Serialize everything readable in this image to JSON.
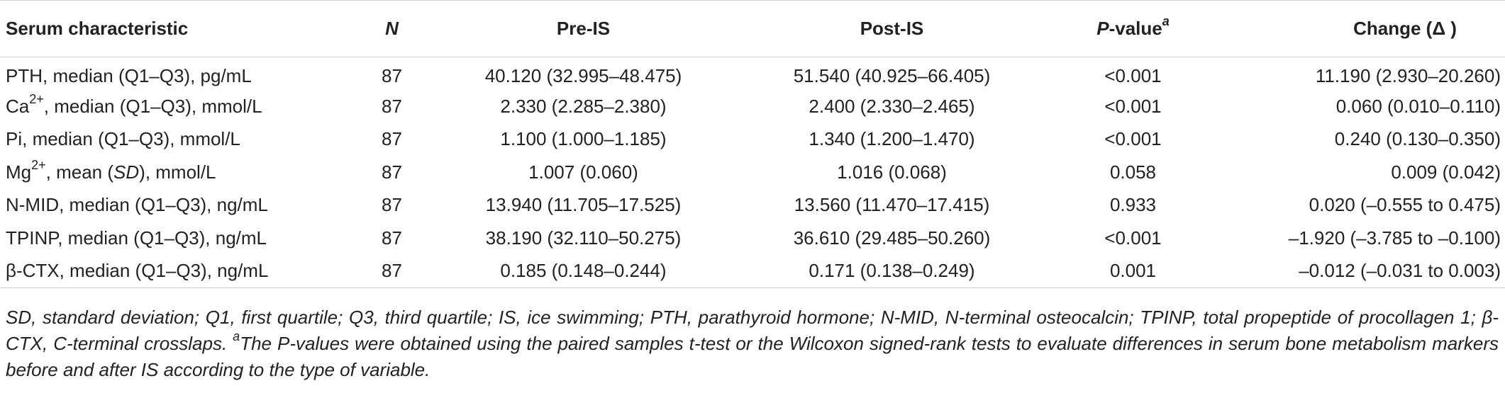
{
  "table": {
    "headers": {
      "characteristic": "Serum characteristic",
      "n": "N",
      "pre": "Pre-IS",
      "post": "Post-IS",
      "p_main": "P",
      "p_rest": "-value",
      "p_sup": "a",
      "change": "Change (Δ )"
    },
    "rows": [
      {
        "pre_label": "PTH, median (Q1–Q3), pg/mL",
        "sup": "",
        "post_label": "",
        "n": "87",
        "pre": "40.120 (32.995–48.475)",
        "post": "51.540 (40.925–66.405)",
        "p": "<0.001",
        "change": "11.190 (2.930–20.260)"
      },
      {
        "pre_label": "Ca",
        "sup": "2+",
        "post_label": ", median (Q1–Q3), mmol/L",
        "n": "87",
        "pre": "2.330 (2.285–2.380)",
        "post": "2.400 (2.330–2.465)",
        "p": "<0.001",
        "change": "0.060 (0.010–0.110)"
      },
      {
        "pre_label": "Pi, median (Q1–Q3), mmol/L",
        "sup": "",
        "post_label": "",
        "n": "87",
        "pre": "1.100 (1.000–1.185)",
        "post": "1.340 (1.200–1.470)",
        "p": "<0.001",
        "change": "0.240 (0.130–0.350)"
      },
      {
        "pre_label": "Mg",
        "sup": "2+",
        "post_label": ", mean (",
        "italic": "SD",
        "tail": "), mmol/L",
        "n": "87",
        "pre": "1.007 (0.060)",
        "post": "1.016 (0.068)",
        "p": "0.058",
        "change": "0.009 (0.042)"
      },
      {
        "pre_label": "N-MID, median (Q1–Q3), ng/mL",
        "sup": "",
        "post_label": "",
        "n": "87",
        "pre": "13.940 (11.705–17.525)",
        "post": "13.560 (11.470–17.415)",
        "p": "0.933",
        "change": "0.020 (–0.555 to 0.475)"
      },
      {
        "pre_label": "TPINP, median (Q1–Q3), ng/mL",
        "sup": "",
        "post_label": "",
        "n": "87",
        "pre": "38.190 (32.110–50.275)",
        "post": "36.610 (29.485–50.260)",
        "p": "<0.001",
        "change": "–1.920 (–3.785 to –0.100)"
      },
      {
        "pre_label": "β-CTX, median (Q1–Q3), ng/mL",
        "sup": "",
        "post_label": "",
        "n": "87",
        "pre": "0.185 (0.148–0.244)",
        "post": "0.171 (0.138–0.249)",
        "p": "0.001",
        "change": "–0.012 (–0.031 to 0.003)"
      }
    ]
  },
  "footnote": {
    "abbrev": "SD, standard deviation; Q1, first quartile; Q3, third quartile; IS, ice swimming; PTH, parathyroid hormone; N-MID, N-terminal osteocalcin; TPINP, total propeptide of procollagen 1; β-CTX, C-terminal crosslaps. ",
    "sup": "a",
    "note": "The P-values were obtained using the paired samples t-test or the Wilcoxon signed-rank tests to evaluate differences in serum bone metabolism markers before and after IS according to the type of variable."
  }
}
